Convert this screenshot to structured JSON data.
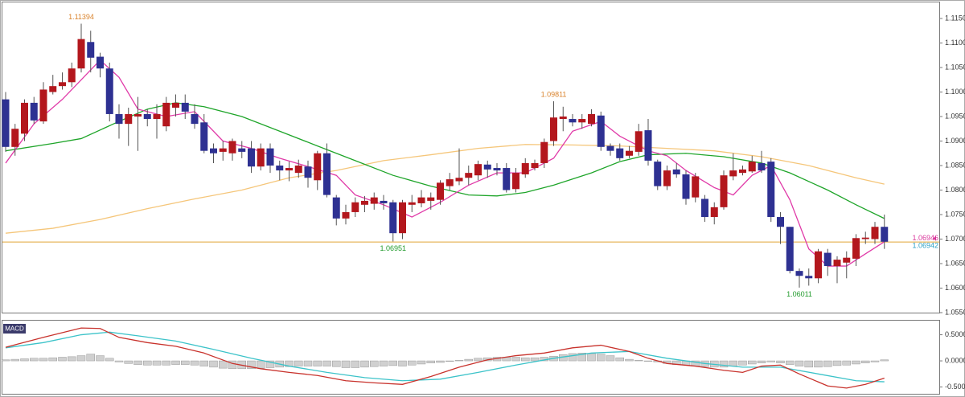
{
  "chart_data": [
    {
      "type": "candlestick",
      "up_color": "#b3171d",
      "down_color": "#2e3192",
      "ylim": [
        1.055,
        1.11844
      ],
      "yticks": [
        {
          "value": 1.115,
          "label": "1.11500"
        },
        {
          "value": 1.11,
          "label": "1.11000"
        },
        {
          "value": 1.105,
          "label": "1.10500"
        },
        {
          "value": 1.1,
          "label": "1.10000"
        },
        {
          "value": 1.095,
          "label": "1.09500"
        },
        {
          "value": 1.09,
          "label": "1.09000"
        },
        {
          "value": 1.085,
          "label": "1.08500"
        },
        {
          "value": 1.08,
          "label": "1.08000"
        },
        {
          "value": 1.075,
          "label": "1.07500"
        },
        {
          "value": 1.07,
          "label": "1.07000"
        },
        {
          "value": 1.065,
          "label": "1.06500"
        },
        {
          "value": 1.06,
          "label": "1.06000"
        },
        {
          "value": 1.055,
          "label": "1.05500"
        }
      ],
      "open": [
        1.0985,
        1.0888,
        1.0915,
        1.0978,
        1.094,
        1.1,
        1.1012,
        1.102,
        1.1048,
        1.1102,
        1.1072,
        1.1048,
        1.0955,
        1.0935,
        1.095,
        1.0955,
        1.0945,
        1.093,
        1.0968,
        1.0978,
        1.0955,
        1.0938,
        1.0885,
        1.0878,
        1.0875,
        1.0885,
        1.0885,
        1.0848,
        1.0885,
        1.085,
        1.084,
        1.0835,
        1.0848,
        1.082,
        1.0875,
        1.0785,
        1.0742,
        1.0755,
        1.077,
        1.0772,
        1.0778,
        1.0775,
        1.0712,
        1.077,
        1.0773,
        1.0778,
        1.078,
        1.0808,
        1.0818,
        1.0825,
        1.083,
        1.0852,
        1.0845,
        1.0845,
        1.0802,
        1.0832,
        1.0845,
        1.0855,
        1.09,
        1.0945,
        1.0945,
        1.0938,
        1.0935,
        1.0952,
        1.089,
        1.0885,
        1.087,
        1.0878,
        1.0922,
        1.0858,
        1.0808,
        1.0842,
        1.0832,
        1.0785,
        1.0782,
        1.0745,
        1.0765,
        1.0828,
        1.0835,
        1.0838,
        1.0855,
        1.0858,
        1.0745,
        1.0725,
        1.0635,
        1.0625,
        1.062,
        1.0672,
        1.0645,
        1.0652,
        1.066,
        1.07,
        1.07,
        1.0725
      ],
      "high": [
        1.1,
        1.0935,
        1.0985,
        1.099,
        1.102,
        1.1035,
        1.104,
        1.106,
        1.11394,
        1.1125,
        1.108,
        1.106,
        1.0975,
        1.0968,
        1.099,
        1.0965,
        1.0975,
        1.099,
        1.0995,
        1.0995,
        1.0975,
        1.0955,
        1.0895,
        1.09,
        1.0905,
        1.09,
        1.09,
        1.0895,
        1.0895,
        1.086,
        1.0858,
        1.0862,
        1.086,
        1.088,
        1.0895,
        1.079,
        1.077,
        1.0785,
        1.0788,
        1.0795,
        1.079,
        1.078,
        1.078,
        1.079,
        1.08,
        1.0795,
        1.082,
        1.0835,
        1.0885,
        1.085,
        1.086,
        1.086,
        1.0855,
        1.0855,
        1.0845,
        1.0865,
        1.0862,
        1.0905,
        1.09811,
        1.097,
        1.0955,
        1.0955,
        1.0965,
        1.096,
        1.0895,
        1.0895,
        1.089,
        1.0935,
        1.0945,
        1.0862,
        1.085,
        1.0855,
        1.084,
        1.0835,
        1.079,
        1.0775,
        1.084,
        1.0875,
        1.085,
        1.087,
        1.088,
        1.0865,
        1.0755,
        1.0725,
        1.064,
        1.064,
        1.068,
        1.068,
        1.0665,
        1.0675,
        1.071,
        1.0715,
        1.0735,
        1.075
      ],
      "low": [
        1.0878,
        1.087,
        1.09,
        1.0935,
        1.0935,
        1.0995,
        1.1005,
        1.101,
        1.104,
        1.104,
        1.103,
        1.094,
        1.0905,
        1.089,
        1.088,
        1.093,
        1.0905,
        1.092,
        1.095,
        1.0945,
        1.0925,
        1.0875,
        1.0855,
        1.086,
        1.086,
        1.0865,
        1.0835,
        1.084,
        1.0835,
        1.082,
        1.0818,
        1.0825,
        1.0805,
        1.08,
        1.0785,
        1.0728,
        1.073,
        1.0745,
        1.0755,
        1.076,
        1.076,
        1.06951,
        1.07,
        1.0755,
        1.0765,
        1.076,
        1.077,
        1.08,
        1.081,
        1.081,
        1.082,
        1.0825,
        1.083,
        1.0795,
        1.0795,
        1.0825,
        1.084,
        1.0845,
        1.089,
        1.092,
        1.093,
        1.0925,
        1.093,
        1.088,
        1.087,
        1.086,
        1.0865,
        1.087,
        1.085,
        1.08,
        1.08,
        1.0825,
        1.077,
        1.0775,
        1.0735,
        1.073,
        1.076,
        1.082,
        1.083,
        1.0835,
        1.0835,
        1.0735,
        1.069,
        1.063,
        1.06011,
        1.0605,
        1.061,
        1.0625,
        1.061,
        1.062,
        1.0645,
        1.069,
        1.069,
        1.068
      ],
      "close": [
        1.0888,
        1.0925,
        1.0978,
        1.0942,
        1.1005,
        1.1012,
        1.102,
        1.1048,
        1.1108,
        1.107,
        1.1048,
        1.0955,
        1.0935,
        1.0955,
        1.0955,
        1.0945,
        1.0955,
        1.0978,
        1.0978,
        1.096,
        1.0935,
        1.088,
        1.0875,
        1.0885,
        1.09,
        1.0878,
        1.0848,
        1.0885,
        1.085,
        1.084,
        1.0845,
        1.085,
        1.0825,
        1.0875,
        1.079,
        1.0742,
        1.0755,
        1.0775,
        1.0778,
        1.0785,
        1.0773,
        1.0712,
        1.0775,
        1.0775,
        1.0785,
        1.0785,
        1.0815,
        1.0822,
        1.0825,
        1.0835,
        1.0853,
        1.0842,
        1.084,
        1.08,
        1.0835,
        1.0855,
        1.0855,
        1.0898,
        1.0948,
        1.095,
        1.0938,
        1.0945,
        1.0955,
        1.0888,
        1.088,
        1.0865,
        1.088,
        1.092,
        1.086,
        1.0808,
        1.084,
        1.0832,
        1.0782,
        1.0828,
        1.0745,
        1.0765,
        1.083,
        1.084,
        1.0842,
        1.0858,
        1.084,
        1.0745,
        1.0725,
        1.0635,
        1.0625,
        1.062,
        1.0675,
        1.0645,
        1.0658,
        1.0662,
        1.0702,
        1.0703,
        1.0725,
        1.06946
      ],
      "lines": [
        {
          "color": "#f5c67a",
          "x": [
            0,
            5,
            10,
            15,
            20,
            25,
            30,
            35,
            40,
            45,
            50,
            55,
            60,
            65,
            70,
            75,
            80,
            85,
            90,
            93
          ],
          "values": [
            1.0712,
            1.0722,
            1.074,
            1.0762,
            1.0782,
            1.08,
            1.0825,
            1.084,
            1.086,
            1.0872,
            1.0885,
            1.0893,
            1.0892,
            1.089,
            1.0885,
            1.088,
            1.0868,
            1.085,
            1.0825,
            1.0812
          ]
        },
        {
          "color": "#1fa52a",
          "x": [
            0,
            5,
            8,
            12,
            15,
            18,
            21,
            25,
            29,
            33,
            37,
            41,
            45,
            49,
            52,
            55,
            58,
            62,
            65,
            68,
            72,
            76,
            80,
            83,
            87,
            90,
            93
          ],
          "values": [
            1.088,
            1.0895,
            1.0905,
            1.094,
            1.0965,
            1.0978,
            1.097,
            1.095,
            1.092,
            1.089,
            1.086,
            1.083,
            1.0808,
            1.079,
            1.0788,
            1.0795,
            1.081,
            1.0835,
            1.0858,
            1.0872,
            1.0875,
            1.0868,
            1.0855,
            1.0835,
            1.08,
            1.077,
            1.0742
          ]
        },
        {
          "color": "#e03aa8",
          "x": [
            0,
            3,
            6,
            9,
            10,
            12,
            14,
            17,
            20,
            23,
            26,
            29,
            32,
            35,
            37,
            40,
            43,
            46,
            49,
            52,
            55,
            58,
            60,
            63,
            65,
            68,
            70,
            72,
            75,
            77,
            79,
            81,
            83,
            85,
            87,
            89,
            91,
            93
          ],
          "values": [
            1.0855,
            1.0935,
            1.0985,
            1.1045,
            1.1065,
            1.103,
            1.0965,
            1.095,
            1.096,
            1.09,
            1.0885,
            1.0865,
            1.0848,
            1.083,
            1.079,
            1.077,
            1.0745,
            1.0775,
            1.081,
            1.0835,
            1.0835,
            1.0865,
            1.092,
            1.094,
            1.091,
            1.088,
            1.087,
            1.084,
            1.0805,
            1.079,
            1.083,
            1.085,
            1.078,
            1.068,
            1.0645,
            1.0645,
            1.067,
            1.06946
          ]
        }
      ],
      "hline": {
        "value": 1.0694,
        "color": "#e0a534"
      },
      "last_values": [
        {
          "value": 1.06946,
          "color": "#d9369b"
        },
        {
          "value": 1.06942,
          "color": "#2a9fc4"
        }
      ],
      "annotations": [
        {
          "index": 8,
          "value": 1.11394,
          "color": "#d9822b",
          "pos": "above"
        },
        {
          "index": 58,
          "value": 1.09811,
          "color": "#d9822b",
          "pos": "above"
        },
        {
          "index": 41,
          "value": 1.06951,
          "color": "#1f9a2a",
          "pos": "below"
        },
        {
          "index": 84,
          "value": 1.06011,
          "color": "#1f9a2a",
          "pos": "below"
        }
      ]
    },
    {
      "type": "macd",
      "title": "MACD",
      "ylim": [
        -0.63,
        0.77
      ],
      "yticks": [
        {
          "value": 0.5,
          "label": "0.5000"
        },
        {
          "value": 0,
          "label": "0.0000"
        },
        {
          "value": -0.5,
          "label": "-0.5000"
        }
      ],
      "histogram": {
        "color": "#d0d0d0",
        "values": [
          0.02,
          0.03,
          0.04,
          0.05,
          0.05,
          0.06,
          0.07,
          0.08,
          0.1,
          0.13,
          0.1,
          0.05,
          -0.02,
          -0.05,
          -0.07,
          -0.08,
          -0.08,
          -0.08,
          -0.07,
          -0.07,
          -0.08,
          -0.1,
          -0.12,
          -0.14,
          -0.15,
          -0.15,
          -0.15,
          -0.14,
          -0.13,
          -0.12,
          -0.11,
          -0.1,
          -0.1,
          -0.1,
          -0.1,
          -0.11,
          -0.13,
          -0.13,
          -0.12,
          -0.11,
          -0.1,
          -0.09,
          -0.1,
          -0.08,
          -0.06,
          -0.04,
          -0.03,
          -0.01,
          0.01,
          0.03,
          0.05,
          0.06,
          0.07,
          0.07,
          0.07,
          0.06,
          0.06,
          0.07,
          0.09,
          0.12,
          0.14,
          0.15,
          0.14,
          0.13,
          0.1,
          0.06,
          0.03,
          0.01,
          0.0,
          -0.02,
          -0.05,
          -0.07,
          -0.08,
          -0.1,
          -0.11,
          -0.12,
          -0.12,
          -0.1,
          -0.08,
          -0.06,
          -0.04,
          -0.02,
          -0.04,
          -0.07,
          -0.1,
          -0.12,
          -0.12,
          -0.11,
          -0.09,
          -0.08,
          -0.06,
          -0.04,
          -0.02,
          0.02
        ]
      },
      "lines": [
        {
          "color": "#3cc3c9",
          "x": [
            0,
            4,
            8,
            11,
            14,
            18,
            22,
            26,
            30,
            34,
            38,
            42,
            46,
            50,
            54,
            58,
            62,
            66,
            70,
            74,
            78,
            82,
            86,
            90,
            93
          ],
          "values": [
            0.25,
            0.35,
            0.5,
            0.55,
            0.48,
            0.38,
            0.22,
            0.05,
            -0.1,
            -0.22,
            -0.32,
            -0.38,
            -0.35,
            -0.22,
            -0.08,
            0.05,
            0.15,
            0.18,
            0.05,
            -0.05,
            -0.12,
            -0.12,
            -0.25,
            -0.38,
            -0.4
          ]
        },
        {
          "color": "#c8322c",
          "x": [
            0,
            4,
            8,
            10,
            12,
            15,
            18,
            21,
            24,
            27,
            30,
            33,
            36,
            39,
            42,
            45,
            48,
            51,
            54,
            57,
            60,
            63,
            66,
            68,
            70,
            73,
            76,
            78,
            80,
            82,
            84,
            87,
            89,
            91,
            93
          ],
          "values": [
            0.26,
            0.45,
            0.63,
            0.62,
            0.45,
            0.35,
            0.28,
            0.15,
            -0.05,
            -0.15,
            -0.22,
            -0.28,
            -0.38,
            -0.42,
            -0.45,
            -0.3,
            -0.12,
            0.02,
            0.1,
            0.15,
            0.25,
            0.3,
            0.18,
            0.05,
            -0.05,
            -0.1,
            -0.18,
            -0.22,
            -0.1,
            -0.08,
            -0.25,
            -0.48,
            -0.52,
            -0.45,
            -0.33
          ]
        }
      ]
    }
  ]
}
